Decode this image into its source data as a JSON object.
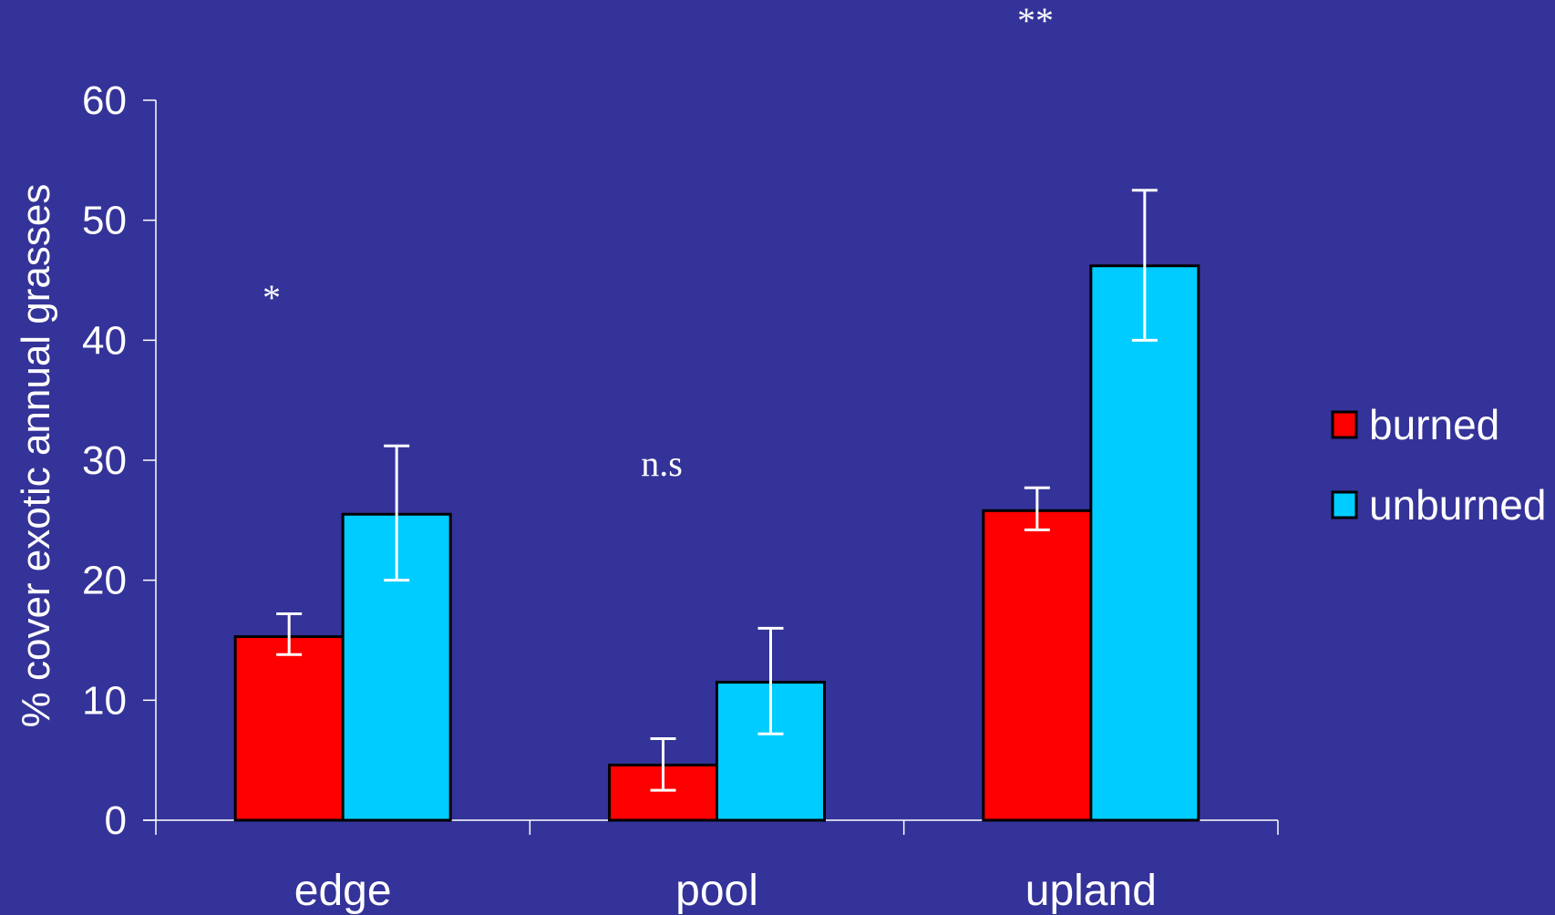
{
  "chart_data": {
    "type": "bar",
    "categories": [
      "edge",
      "pool",
      "upland"
    ],
    "series": [
      {
        "name": "burned",
        "color": "#ff0000",
        "values": [
          15.3,
          4.6,
          25.8
        ],
        "error": [
          [
            13.8,
            17.2
          ],
          [
            2.5,
            6.8
          ],
          [
            24.2,
            27.7
          ]
        ]
      },
      {
        "name": "unburned",
        "color": "#00ccff",
        "values": [
          25.5,
          11.5,
          46.2
        ],
        "error": [
          [
            20.0,
            31.2
          ],
          [
            7.2,
            16.0
          ],
          [
            40.0,
            52.5
          ]
        ]
      }
    ],
    "ylabel": "% cover exotic annual grasses",
    "xlabel": "",
    "ylim": [
      0,
      60
    ],
    "yticks": [
      0,
      10,
      20,
      30,
      40,
      50,
      60
    ],
    "annotations": [
      "*",
      "n.s",
      "**"
    ],
    "legend": "right",
    "grid": false
  }
}
